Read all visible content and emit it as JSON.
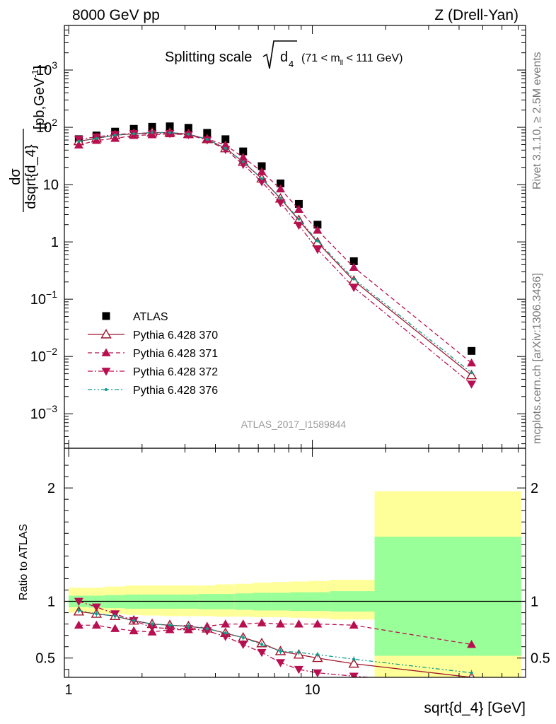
{
  "header": {
    "left": "8000 GeV pp",
    "right": "Z (Drell-Yan)"
  },
  "side": {
    "rivet": "Rivet 3.1.10, ≥ 2.5M events",
    "mcplots": "mcplots.cern.ch [arXiv:1306.3436]"
  },
  "chart_data": [
    {
      "type": "scatter",
      "panel": "main",
      "title": "Splitting scale √d4 (71 < mll < 111 GeV)",
      "title_parts": {
        "main": "Splitting scale",
        "var": "d",
        "sub": "4",
        "range": "(71 < m",
        "range_sub": "ll",
        "range_end": " < 111 GeV)"
      },
      "ylabel": "dσ / dsqrt{d_4} [pb,GeV⁻¹]",
      "ylabel_parts": {
        "num": "dσ",
        "den": "dsqrt{d_4}",
        "units": "[pb,GeV",
        "exp": "-1",
        "close": "]"
      },
      "xlabel": "sqrt{d_4} [GeV]",
      "xscale": "log",
      "yscale": "log",
      "xlim": [
        0.96,
        75
      ],
      "ylim": [
        0.00025,
        6000
      ],
      "watermark": "ATLAS_2017_I1589844",
      "legend_position": "bottom-left",
      "x": [
        1.1,
        1.3,
        1.55,
        1.85,
        2.2,
        2.6,
        3.1,
        3.7,
        4.4,
        5.2,
        6.2,
        7.4,
        8.8,
        10.5,
        14.8,
        45
      ],
      "series": [
        {
          "name": "ATLAS",
          "marker": "square",
          "color": "#000000",
          "values": [
            62,
            72,
            84,
            94,
            102,
            104,
            98,
            80,
            62,
            38,
            21,
            10.5,
            4.6,
            2.0,
            0.46,
            0.0125
          ]
        },
        {
          "name": "Pythia 6.428 370",
          "marker": "open-triangle-up",
          "line": "solid",
          "color": "#a0142a",
          "values": [
            57,
            64,
            73,
            77,
            81,
            81,
            76,
            62,
            43,
            25,
            12.7,
            5.7,
            2.4,
            0.98,
            0.21,
            0.0047
          ]
        },
        {
          "name": "Pythia 6.428 371",
          "marker": "triangle-up",
          "line": "dashed",
          "color": "#b80f50",
          "values": [
            49,
            59,
            64,
            72,
            74,
            77,
            74,
            63,
            49,
            30,
            16.8,
            8.4,
            3.7,
            1.6,
            0.36,
            0.0077
          ]
        },
        {
          "name": "Pythia 6.428 372",
          "marker": "triangle-down",
          "line": "dashdot",
          "color": "#b80f50",
          "values": [
            62,
            68,
            75,
            78,
            77,
            78,
            74,
            60,
            41,
            22.5,
            11.2,
            4.85,
            1.95,
            0.74,
            0.16,
            0.0033
          ]
        },
        {
          "name": "Pythia 6.428 376",
          "marker": "dot",
          "line": "dashdotdot",
          "color": "#0e9a8a",
          "values": [
            57,
            64,
            73,
            77,
            81,
            81,
            76,
            62,
            43,
            25,
            12.7,
            5.8,
            2.5,
            1.04,
            0.225,
            0.0052
          ]
        }
      ]
    },
    {
      "type": "line",
      "panel": "ratio",
      "ylabel": "Ratio to ATLAS",
      "xscale": "log",
      "xlim": [
        0.96,
        75
      ],
      "ylim": [
        0.33,
        2.35
      ],
      "yticks": [
        0.5,
        1,
        2
      ],
      "bin_edges": [
        1.0,
        1.2,
        1.4,
        1.7,
        2.0,
        2.4,
        2.8,
        3.4,
        4.0,
        4.8,
        5.7,
        6.8,
        8.1,
        9.6,
        11.8,
        18,
        72
      ],
      "band_inner": [
        [
          0.95,
          1.05
        ],
        [
          0.945,
          1.05
        ],
        [
          0.94,
          1.055
        ],
        [
          0.935,
          1.06
        ],
        [
          0.935,
          1.06
        ],
        [
          0.935,
          1.06
        ],
        [
          0.935,
          1.06
        ],
        [
          0.93,
          1.065
        ],
        [
          0.93,
          1.065
        ],
        [
          0.925,
          1.07
        ],
        [
          0.92,
          1.075
        ],
        [
          0.92,
          1.075
        ],
        [
          0.915,
          1.08
        ],
        [
          0.915,
          1.08
        ],
        [
          0.91,
          1.09
        ],
        [
          0.52,
          1.57
        ]
      ],
      "band_outer": [
        [
          0.9,
          1.12
        ],
        [
          0.895,
          1.12
        ],
        [
          0.89,
          1.13
        ],
        [
          0.88,
          1.14
        ],
        [
          0.875,
          1.14
        ],
        [
          0.87,
          1.14
        ],
        [
          0.87,
          1.14
        ],
        [
          0.87,
          1.14
        ],
        [
          0.865,
          1.15
        ],
        [
          0.865,
          1.155
        ],
        [
          0.86,
          1.165
        ],
        [
          0.86,
          1.17
        ],
        [
          0.855,
          1.175
        ],
        [
          0.85,
          1.18
        ],
        [
          0.84,
          1.19
        ],
        [
          0.3,
          1.97
        ]
      ],
      "x": [
        1.1,
        1.3,
        1.55,
        1.85,
        2.2,
        2.6,
        3.1,
        3.7,
        4.4,
        5.2,
        6.2,
        7.4,
        8.8,
        10.5,
        14.8,
        45
      ],
      "series": [
        {
          "name": "Pythia 6.428 370",
          "values": [
            0.91,
            0.89,
            0.87,
            0.83,
            0.8,
            0.79,
            0.78,
            0.76,
            0.72,
            0.68,
            0.63,
            0.56,
            0.53,
            0.5,
            0.45,
            0.33
          ]
        },
        {
          "name": "Pythia 6.428 371",
          "values": [
            0.79,
            0.79,
            0.76,
            0.74,
            0.73,
            0.75,
            0.75,
            0.78,
            0.8,
            0.8,
            0.81,
            0.8,
            0.8,
            0.8,
            0.79,
            0.62
          ]
        },
        {
          "name": "Pythia 6.428 372",
          "values": [
            1.0,
            0.95,
            0.89,
            0.83,
            0.77,
            0.76,
            0.76,
            0.74,
            0.69,
            0.62,
            0.55,
            0.46,
            0.4,
            0.37,
            0.34,
            0.26
          ]
        },
        {
          "name": "Pythia 6.428 376",
          "values": [
            0.92,
            0.89,
            0.87,
            0.83,
            0.8,
            0.79,
            0.78,
            0.76,
            0.72,
            0.68,
            0.62,
            0.56,
            0.55,
            0.53,
            0.49,
            0.37
          ]
        }
      ]
    }
  ]
}
